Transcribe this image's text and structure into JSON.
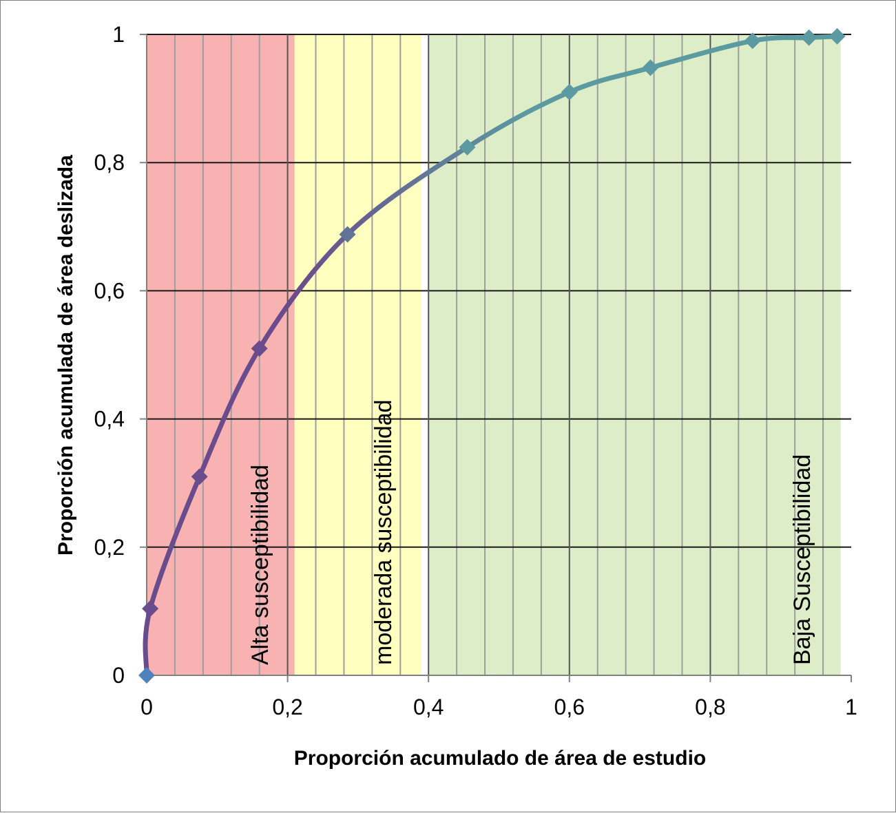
{
  "chart_data": {
    "type": "line",
    "title": "",
    "xlabel": "Proporción acumulado  de área de estudio",
    "ylabel": "Proporción  acumulada  de área deslizada",
    "xlim": [
      0,
      1
    ],
    "ylim": [
      0,
      1
    ],
    "x_ticks": [
      0,
      0.2,
      0.4,
      0.6,
      0.8,
      1
    ],
    "x_tick_labels": [
      "0",
      "0,2",
      "0,4",
      "0,6",
      "0,8",
      "1"
    ],
    "y_ticks": [
      0,
      0.2,
      0.4,
      0.6,
      0.8,
      1
    ],
    "y_tick_labels": [
      "0",
      "0,2",
      "0,4",
      "0,6",
      "0,8",
      "1"
    ],
    "grid": true,
    "legend": "none",
    "series": [
      {
        "x": [
          0,
          0.005,
          0.075,
          0.16,
          0.285,
          0.455,
          0.6,
          0.715,
          0.86,
          0.94,
          0.98
        ],
        "y": [
          0,
          0.104,
          0.31,
          0.51,
          0.688,
          0.824,
          0.91,
          0.948,
          0.99,
          0.995,
          0.997
        ]
      }
    ],
    "zones": [
      {
        "label": "Alta susceptibilidad",
        "x_start": 0,
        "x_end": 0.21,
        "color": "#f9b2b2"
      },
      {
        "label": "moderada susceptibilidad",
        "x_start": 0.21,
        "x_end": 0.39,
        "color": "#ffffc0"
      },
      {
        "label": "Baja Susceptibilidad",
        "x_start": 0.4,
        "x_end": 0.985,
        "color": "#dcedc8"
      }
    ],
    "colors": {
      "line_start": "#6a4c8c",
      "line_end": "#5b9aa0",
      "marker_end": "#4f81bd",
      "grid_major": "#1a1a1a",
      "grid_minor": "#9e9e9e"
    }
  }
}
